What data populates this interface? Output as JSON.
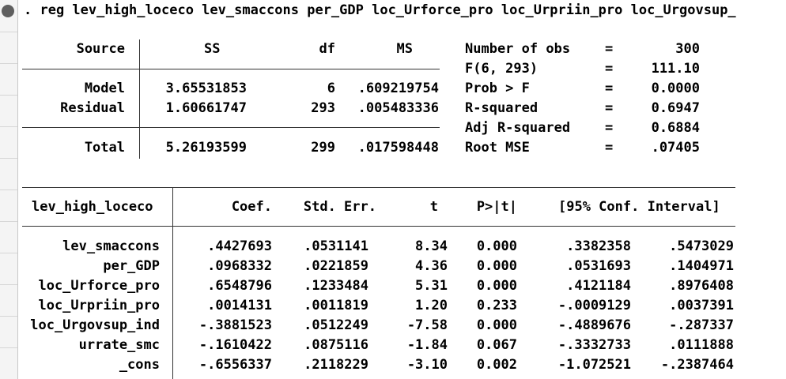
{
  "command": ". reg lev_high_loceco lev_smaccons per_GDP loc_Urforce_pro loc_Urpriin_pro loc_Urgovsup_",
  "anova": {
    "headers": {
      "source": "Source",
      "ss": "SS",
      "df": "df",
      "ms": "MS"
    },
    "rows": [
      {
        "source": "Model",
        "ss": "3.65531853",
        "df": "6",
        "ms": ".609219754"
      },
      {
        "source": "Residual",
        "ss": "1.60661747",
        "df": "293",
        "ms": ".005483336"
      }
    ],
    "total": {
      "source": "Total",
      "ss": "5.26193599",
      "df": "299",
      "ms": ".017598448"
    }
  },
  "stats": [
    {
      "label": "Number of obs",
      "eq": "=",
      "value": "300"
    },
    {
      "label": "F(6, 293)",
      "eq": "=",
      "value": "111.10"
    },
    {
      "label": "Prob > F",
      "eq": "=",
      "value": "0.0000"
    },
    {
      "label": "R-squared",
      "eq": "=",
      "value": "0.6947"
    },
    {
      "label": "Adj R-squared",
      "eq": "=",
      "value": "0.6884"
    },
    {
      "label": "Root MSE",
      "eq": "=",
      "value": ".07405"
    }
  ],
  "coef": {
    "depvar": "lev_high_loceco",
    "headers": {
      "coef": "Coef.",
      "se": "Std. Err.",
      "t": "t",
      "p": "P>|t|",
      "ci": "[95% Conf. Interval]"
    },
    "rows": [
      {
        "name": "lev_smaccons",
        "coef": ".4427693",
        "se": ".0531141",
        "t": "8.34",
        "p": "0.000",
        "lo": ".3382358",
        "hi": ".5473029"
      },
      {
        "name": "per_GDP",
        "coef": ".0968332",
        "se": ".0221859",
        "t": "4.36",
        "p": "0.000",
        "lo": ".0531693",
        "hi": ".1404971"
      },
      {
        "name": "loc_Urforce_pro",
        "coef": ".6548796",
        "se": ".1233484",
        "t": "5.31",
        "p": "0.000",
        "lo": ".4121184",
        "hi": ".8976408"
      },
      {
        "name": "loc_Urpriin_pro",
        "coef": ".0014131",
        "se": ".0011819",
        "t": "1.20",
        "p": "0.233",
        "lo": "-.0009129",
        "hi": ".0037391"
      },
      {
        "name": "loc_Urgovsup_ind",
        "coef": "-.3881523",
        "se": ".0512249",
        "t": "-7.58",
        "p": "0.000",
        "lo": "-.4889676",
        "hi": "-.287337"
      },
      {
        "name": "urrate_smc",
        "coef": "-.1610422",
        "se": ".0875116",
        "t": "-1.84",
        "p": "0.067",
        "lo": "-.3332733",
        "hi": ".0111888"
      },
      {
        "name": "_cons",
        "coef": "-.6556337",
        "se": ".2118229",
        "t": "-3.10",
        "p": "0.002",
        "lo": "-1.072521",
        "hi": "-.2387464"
      }
    ]
  }
}
